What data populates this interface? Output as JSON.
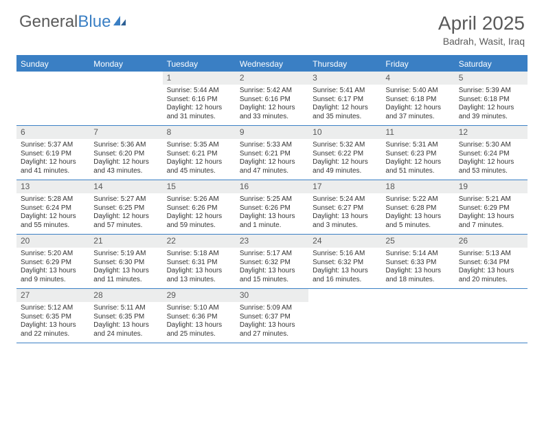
{
  "logo": {
    "text1": "General",
    "text2": "Blue"
  },
  "title": "April 2025",
  "location": "Badrah, Wasit, Iraq",
  "colors": {
    "header_bg": "#3a7fc4",
    "header_text": "#ffffff",
    "daynum_bg": "#eceded",
    "text": "#333333",
    "page_bg": "#ffffff"
  },
  "day_names": [
    "Sunday",
    "Monday",
    "Tuesday",
    "Wednesday",
    "Thursday",
    "Friday",
    "Saturday"
  ],
  "weeks": [
    [
      null,
      null,
      {
        "n": "1",
        "sr": "Sunrise: 5:44 AM",
        "ss": "Sunset: 6:16 PM",
        "d1": "Daylight: 12 hours",
        "d2": "and 31 minutes."
      },
      {
        "n": "2",
        "sr": "Sunrise: 5:42 AM",
        "ss": "Sunset: 6:16 PM",
        "d1": "Daylight: 12 hours",
        "d2": "and 33 minutes."
      },
      {
        "n": "3",
        "sr": "Sunrise: 5:41 AM",
        "ss": "Sunset: 6:17 PM",
        "d1": "Daylight: 12 hours",
        "d2": "and 35 minutes."
      },
      {
        "n": "4",
        "sr": "Sunrise: 5:40 AM",
        "ss": "Sunset: 6:18 PM",
        "d1": "Daylight: 12 hours",
        "d2": "and 37 minutes."
      },
      {
        "n": "5",
        "sr": "Sunrise: 5:39 AM",
        "ss": "Sunset: 6:18 PM",
        "d1": "Daylight: 12 hours",
        "d2": "and 39 minutes."
      }
    ],
    [
      {
        "n": "6",
        "sr": "Sunrise: 5:37 AM",
        "ss": "Sunset: 6:19 PM",
        "d1": "Daylight: 12 hours",
        "d2": "and 41 minutes."
      },
      {
        "n": "7",
        "sr": "Sunrise: 5:36 AM",
        "ss": "Sunset: 6:20 PM",
        "d1": "Daylight: 12 hours",
        "d2": "and 43 minutes."
      },
      {
        "n": "8",
        "sr": "Sunrise: 5:35 AM",
        "ss": "Sunset: 6:21 PM",
        "d1": "Daylight: 12 hours",
        "d2": "and 45 minutes."
      },
      {
        "n": "9",
        "sr": "Sunrise: 5:33 AM",
        "ss": "Sunset: 6:21 PM",
        "d1": "Daylight: 12 hours",
        "d2": "and 47 minutes."
      },
      {
        "n": "10",
        "sr": "Sunrise: 5:32 AM",
        "ss": "Sunset: 6:22 PM",
        "d1": "Daylight: 12 hours",
        "d2": "and 49 minutes."
      },
      {
        "n": "11",
        "sr": "Sunrise: 5:31 AM",
        "ss": "Sunset: 6:23 PM",
        "d1": "Daylight: 12 hours",
        "d2": "and 51 minutes."
      },
      {
        "n": "12",
        "sr": "Sunrise: 5:30 AM",
        "ss": "Sunset: 6:24 PM",
        "d1": "Daylight: 12 hours",
        "d2": "and 53 minutes."
      }
    ],
    [
      {
        "n": "13",
        "sr": "Sunrise: 5:28 AM",
        "ss": "Sunset: 6:24 PM",
        "d1": "Daylight: 12 hours",
        "d2": "and 55 minutes."
      },
      {
        "n": "14",
        "sr": "Sunrise: 5:27 AM",
        "ss": "Sunset: 6:25 PM",
        "d1": "Daylight: 12 hours",
        "d2": "and 57 minutes."
      },
      {
        "n": "15",
        "sr": "Sunrise: 5:26 AM",
        "ss": "Sunset: 6:26 PM",
        "d1": "Daylight: 12 hours",
        "d2": "and 59 minutes."
      },
      {
        "n": "16",
        "sr": "Sunrise: 5:25 AM",
        "ss": "Sunset: 6:26 PM",
        "d1": "Daylight: 13 hours",
        "d2": "and 1 minute."
      },
      {
        "n": "17",
        "sr": "Sunrise: 5:24 AM",
        "ss": "Sunset: 6:27 PM",
        "d1": "Daylight: 13 hours",
        "d2": "and 3 minutes."
      },
      {
        "n": "18",
        "sr": "Sunrise: 5:22 AM",
        "ss": "Sunset: 6:28 PM",
        "d1": "Daylight: 13 hours",
        "d2": "and 5 minutes."
      },
      {
        "n": "19",
        "sr": "Sunrise: 5:21 AM",
        "ss": "Sunset: 6:29 PM",
        "d1": "Daylight: 13 hours",
        "d2": "and 7 minutes."
      }
    ],
    [
      {
        "n": "20",
        "sr": "Sunrise: 5:20 AM",
        "ss": "Sunset: 6:29 PM",
        "d1": "Daylight: 13 hours",
        "d2": "and 9 minutes."
      },
      {
        "n": "21",
        "sr": "Sunrise: 5:19 AM",
        "ss": "Sunset: 6:30 PM",
        "d1": "Daylight: 13 hours",
        "d2": "and 11 minutes."
      },
      {
        "n": "22",
        "sr": "Sunrise: 5:18 AM",
        "ss": "Sunset: 6:31 PM",
        "d1": "Daylight: 13 hours",
        "d2": "and 13 minutes."
      },
      {
        "n": "23",
        "sr": "Sunrise: 5:17 AM",
        "ss": "Sunset: 6:32 PM",
        "d1": "Daylight: 13 hours",
        "d2": "and 15 minutes."
      },
      {
        "n": "24",
        "sr": "Sunrise: 5:16 AM",
        "ss": "Sunset: 6:32 PM",
        "d1": "Daylight: 13 hours",
        "d2": "and 16 minutes."
      },
      {
        "n": "25",
        "sr": "Sunrise: 5:14 AM",
        "ss": "Sunset: 6:33 PM",
        "d1": "Daylight: 13 hours",
        "d2": "and 18 minutes."
      },
      {
        "n": "26",
        "sr": "Sunrise: 5:13 AM",
        "ss": "Sunset: 6:34 PM",
        "d1": "Daylight: 13 hours",
        "d2": "and 20 minutes."
      }
    ],
    [
      {
        "n": "27",
        "sr": "Sunrise: 5:12 AM",
        "ss": "Sunset: 6:35 PM",
        "d1": "Daylight: 13 hours",
        "d2": "and 22 minutes."
      },
      {
        "n": "28",
        "sr": "Sunrise: 5:11 AM",
        "ss": "Sunset: 6:35 PM",
        "d1": "Daylight: 13 hours",
        "d2": "and 24 minutes."
      },
      {
        "n": "29",
        "sr": "Sunrise: 5:10 AM",
        "ss": "Sunset: 6:36 PM",
        "d1": "Daylight: 13 hours",
        "d2": "and 25 minutes."
      },
      {
        "n": "30",
        "sr": "Sunrise: 5:09 AM",
        "ss": "Sunset: 6:37 PM",
        "d1": "Daylight: 13 hours",
        "d2": "and 27 minutes."
      },
      null,
      null,
      null
    ]
  ]
}
